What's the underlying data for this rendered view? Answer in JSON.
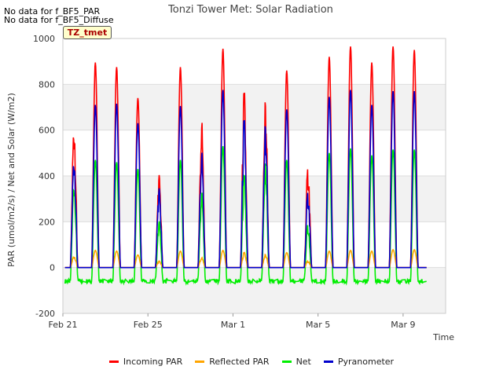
{
  "notes": [
    "No data for f_BF5_PAR",
    "No data for f_BF5_Diffuse"
  ],
  "badge": "TZ_tmet",
  "chart_data": {
    "type": "line",
    "title": "Tonzi Tower Met: Solar Radiation",
    "xlabel": "Time",
    "ylabel": "PAR (umol/m2/s) / Net and Solar (W/m2)",
    "xlim": [
      "2023-02-21",
      "2023-03-11"
    ],
    "ylim": [
      -200,
      1000
    ],
    "yticks": [
      -200,
      0,
      200,
      400,
      600,
      800,
      1000
    ],
    "xticks": [
      {
        "date": "2023-02-21",
        "label": "Feb 21"
      },
      {
        "date": "2023-02-25",
        "label": "Feb 25"
      },
      {
        "date": "2023-03-01",
        "label": "Mar 1"
      },
      {
        "date": "2023-03-05",
        "label": "Mar 5"
      },
      {
        "date": "2023-03-09",
        "label": "Mar 9"
      }
    ],
    "grid": true,
    "legend_position": "bottom",
    "series": [
      {
        "name": "Incoming PAR",
        "color": "#ff0000",
        "daily_peak": [
          680,
          895,
          875,
          740,
          420,
          875,
          655,
          955,
          795,
          760,
          860,
          460,
          920,
          965,
          895,
          965,
          950
        ]
      },
      {
        "name": "Reflected PAR",
        "color": "#ffa500",
        "daily_peak": [
          55,
          75,
          72,
          55,
          30,
          72,
          45,
          75,
          68,
          60,
          65,
          30,
          72,
          75,
          72,
          78,
          78
        ]
      },
      {
        "name": "Net",
        "color": "#00ee00",
        "daily_peak": [
          410,
          470,
          460,
          430,
          210,
          470,
          340,
          530,
          420,
          480,
          470,
          200,
          500,
          520,
          490,
          515,
          515
        ]
      },
      {
        "name": "Pyranometer",
        "color": "#0000cc",
        "daily_peak": [
          530,
          710,
          715,
          630,
          360,
          705,
          520,
          775,
          670,
          650,
          690,
          350,
          745,
          775,
          710,
          770,
          770
        ]
      }
    ],
    "net_night_value": -60
  }
}
